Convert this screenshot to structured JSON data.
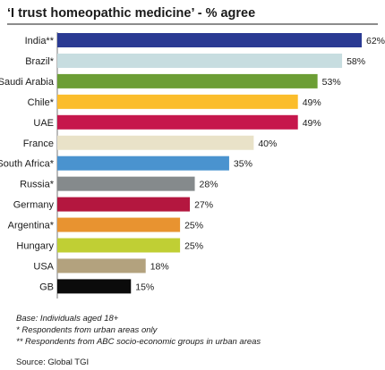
{
  "chart_data": {
    "type": "bar",
    "orientation": "horizontal",
    "title": "‘I trust homeopathic medicine’ - % agree",
    "categories": [
      "India**",
      "Brazil*",
      "Saudi Arabia",
      "Chile*",
      "UAE",
      "France",
      "South Africa*",
      "Russia*",
      "Germany",
      "Argentina*",
      "Hungary",
      "USA",
      "GB"
    ],
    "values": [
      62,
      58,
      53,
      49,
      49,
      40,
      35,
      28,
      27,
      25,
      25,
      18,
      15
    ],
    "value_labels": [
      "62%",
      "58%",
      "53%",
      "49%",
      "49%",
      "40%",
      "35%",
      "28%",
      "27%",
      "25%",
      "25%",
      "18%",
      "15%"
    ],
    "colors": [
      "#2a3a93",
      "#c7dde0",
      "#6c9e35",
      "#fbbd2c",
      "#c6174c",
      "#e9e2c8",
      "#4a93cf",
      "#858a8c",
      "#b4173f",
      "#e89330",
      "#c0cf34",
      "#b3a27e",
      "#0b0b0b"
    ],
    "xlim": [
      0,
      62
    ],
    "grid": false,
    "legend": "none"
  },
  "notes": [
    "Base:  Individuals aged 18+",
    "* Respondents from urban areas only",
    "** Respondents from ABC socio-economic groups in urban areas"
  ],
  "source": "Source:  Global TGI"
}
